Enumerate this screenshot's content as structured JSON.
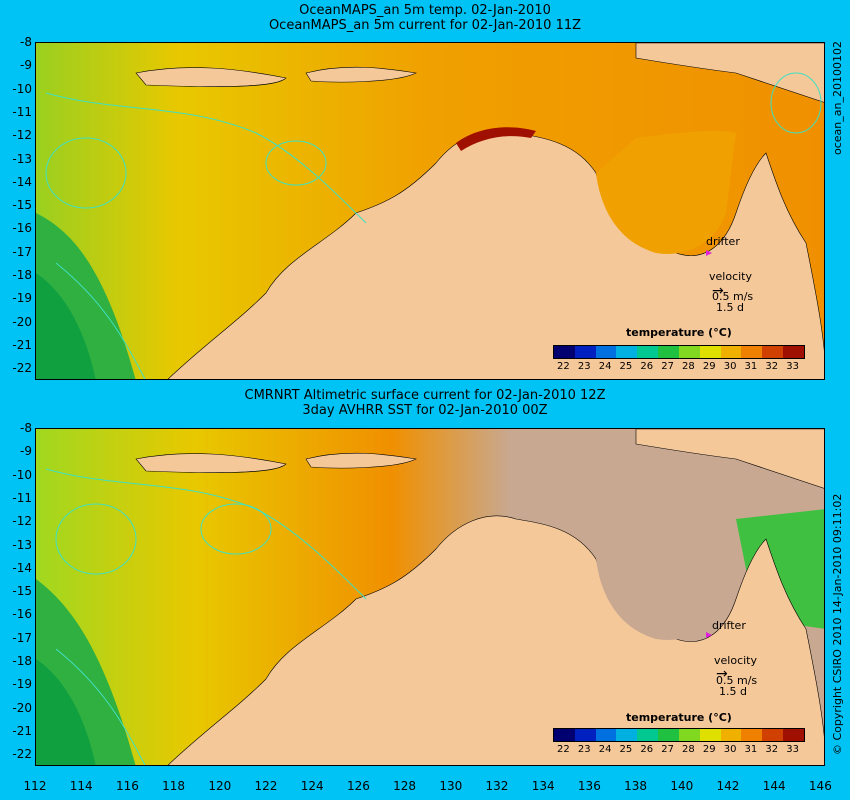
{
  "top": {
    "title_line1": "OceanMAPS_an 5m temp. 02-Jan-2010",
    "title_line2": "OceanMAPS_an 5m current for 02-Jan-2010 11Z",
    "side_label": "ocean_an_20100102"
  },
  "bottom": {
    "title_line1": "CMRNRT Altimetric surface current for 02-Jan-2010 12Z",
    "title_line2": "3day AVHRR SST for 02-Jan-2010 00Z",
    "side_label": "© Copyright CSIRO 2010   14-Jan-2010 09:11:02"
  },
  "y_axis_labels": [
    "-8",
    "-9",
    "-10",
    "-11",
    "-12",
    "-13",
    "-14",
    "-15",
    "-16",
    "-17",
    "-18",
    "-19",
    "-20",
    "-21",
    "-22"
  ],
  "x_axis_labels": [
    "112",
    "114",
    "116",
    "118",
    "120",
    "122",
    "124",
    "126",
    "128",
    "130",
    "132",
    "134",
    "136",
    "138",
    "140",
    "142",
    "144",
    "146"
  ],
  "legend": {
    "title": "temperature (°C)",
    "ticks": [
      "22",
      "23",
      "24",
      "25",
      "26",
      "27",
      "28",
      "29",
      "30",
      "31",
      "32",
      "33"
    ],
    "colors": [
      "#000070",
      "#0020c0",
      "#0070e0",
      "#00b0e0",
      "#00c890",
      "#20c040",
      "#80d820",
      "#e0e000",
      "#f0b000",
      "#f08000",
      "#d04000",
      "#a01000"
    ]
  },
  "drifter_label": "drifter",
  "velocity_label": "velocity",
  "velocity_value": "0.5 m/s",
  "velocity_days": "1.5 d"
}
